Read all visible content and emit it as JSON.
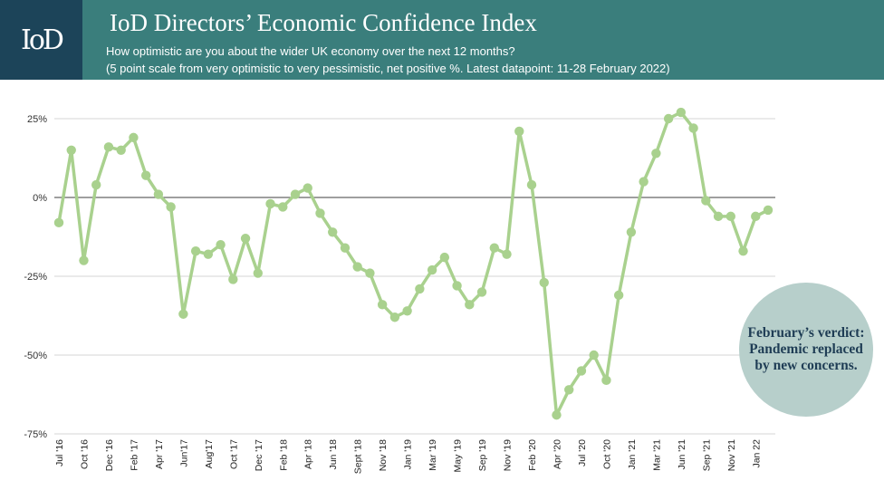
{
  "header": {
    "logo": "IoD",
    "title": "IoD Directors’ Economic Confidence Index",
    "subtitle_line1": "How optimistic are you about the wider UK economy over the next 12 months?",
    "subtitle_line2": "(5 point scale from very optimistic to very pessimistic, net positive %. Latest datapoint: 11-28 February 2022)"
  },
  "verdict": {
    "text": "February’s verdict: Pandemic replaced by new concerns."
  },
  "colors": {
    "header_bg": "#3a7e7c",
    "logo_bg": "#1c4459",
    "line": "#a9d18e",
    "verdict_bg": "#b7cfcb",
    "verdict_text": "#1f3d55"
  },
  "chart_data": {
    "type": "line",
    "title": "IoD Directors’ Economic Confidence Index",
    "xlabel": "",
    "ylabel": "",
    "ylim": [
      -75,
      25
    ],
    "yticks": [
      25,
      0,
      -25,
      -50,
      -75
    ],
    "ytick_labels": [
      "25%",
      "0%",
      "-25%",
      "-50%",
      "-75%"
    ],
    "x_tick_labels": [
      "Jul '16",
      "Oct '16",
      "Dec '16",
      "Feb '17",
      "Apr '17",
      "Jun'17",
      "Aug'17",
      "Oct '17",
      "Dec '17",
      "Feb '18",
      "Apr '18",
      "Jun '18",
      "Sept '18",
      "Nov '18",
      "Jan '19",
      "Mar '19",
      "May '19",
      "Sep '19",
      "Nov '19",
      "Feb '20",
      "Apr '20",
      "Jul '20",
      "Oct '20",
      "Jan '21",
      "Mar '21",
      "Jun '21",
      "Sep '21",
      "Nov '21",
      "Jan 22"
    ],
    "series": [
      {
        "name": "Net positive %",
        "values": [
          -8,
          15,
          -20,
          4,
          16,
          15,
          19,
          7,
          1,
          -3,
          -37,
          -17,
          -18,
          -15,
          -26,
          -13,
          -24,
          -2,
          -3,
          1,
          3,
          -5,
          -11,
          -16,
          -22,
          -24,
          -34,
          -38,
          -36,
          -29,
          -23,
          -19,
          -28,
          -34,
          -30,
          -16,
          -18,
          21,
          4,
          -27,
          -69,
          -61,
          -55,
          -50,
          -58,
          -31,
          -11,
          5,
          14,
          25,
          27,
          22,
          -1,
          -6,
          -6,
          -17,
          -6,
          -4
        ]
      }
    ]
  }
}
